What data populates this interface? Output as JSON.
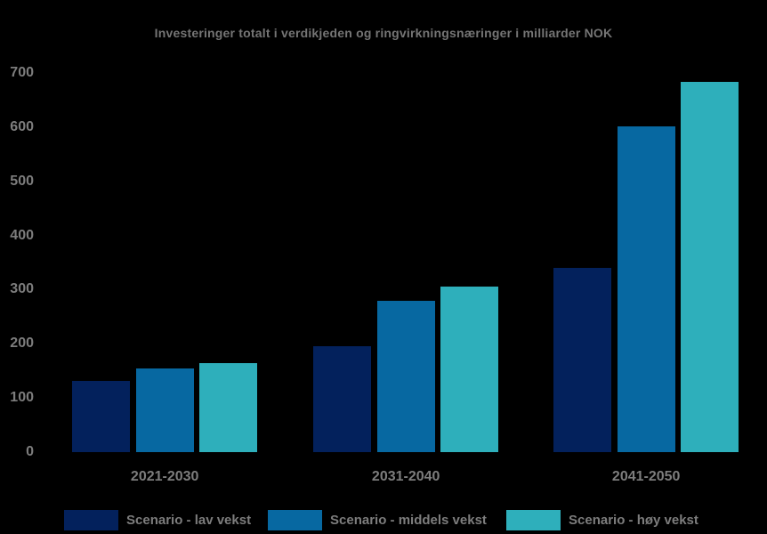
{
  "colors": {
    "background": "#000000",
    "title_text": "#757575",
    "axis_text": "#7d7d7d",
    "legend_text": "#7d7d7d",
    "series_lav": "#03215c",
    "series_middels": "#0768a1",
    "series_hoy": "#2eafbb"
  },
  "chart_data": {
    "type": "bar",
    "title": "Investeringer totalt i verdikjeden og ringvirkningsnæringer i milliarder NOK",
    "xlabel": "",
    "ylabel": "",
    "categories": [
      "2021-2030",
      "2031-2040",
      "2041-2050"
    ],
    "series": [
      {
        "name": "Scenario - lav vekst",
        "color": "#03215c",
        "values": [
          132,
          196,
          340
        ]
      },
      {
        "name": "Scenario - middels vekst",
        "color": "#0768a1",
        "values": [
          155,
          280,
          602
        ]
      },
      {
        "name": "Scenario - høy vekst",
        "color": "#2eafbb",
        "values": [
          164,
          305,
          684
        ]
      }
    ],
    "ylim": [
      0,
      700
    ],
    "yticks": [
      0,
      100,
      200,
      300,
      400,
      500,
      600,
      700
    ],
    "grid": false,
    "legend_position": "bottom"
  }
}
